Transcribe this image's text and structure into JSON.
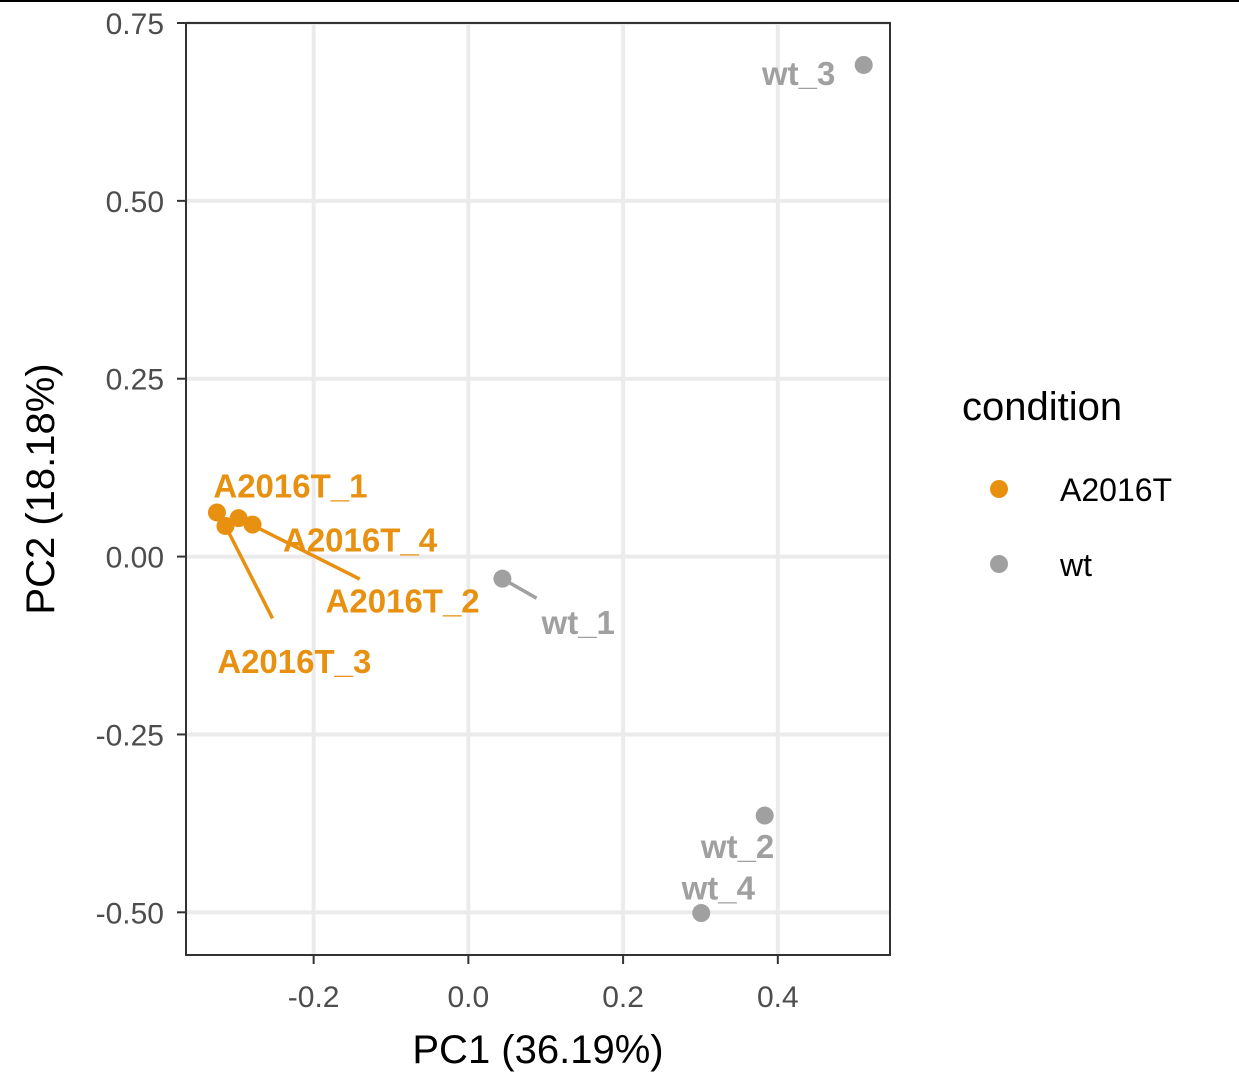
{
  "chart_data": {
    "type": "scatter",
    "title": "",
    "xlabel": "PC1 (36.19%)",
    "ylabel": "PC2 (18.18%)",
    "xlim": [
      -0.365,
      0.545
    ],
    "ylim": [
      -0.56,
      0.75
    ],
    "x_ticks": [
      -0.2,
      0.0,
      0.2,
      0.4
    ],
    "x_tick_labels": [
      "-0.2",
      "0.0",
      "0.2",
      "0.4"
    ],
    "y_ticks": [
      -0.5,
      -0.25,
      0.0,
      0.25,
      0.5,
      0.75
    ],
    "y_tick_labels": [
      "-0.50",
      "-0.25",
      "0.00",
      "0.25",
      "0.50",
      "0.75"
    ],
    "grid": true,
    "legend": {
      "title": "condition",
      "position": "right",
      "entries": [
        {
          "label": "A2016T",
          "color": "#E8900F"
        },
        {
          "label": "wt",
          "color": "#A0A0A0"
        }
      ]
    },
    "points": [
      {
        "label": "A2016T_1",
        "condition": "A2016T",
        "x": -0.325,
        "y": 0.062,
        "lx": -0.23,
        "ly": 0.1,
        "connector": false
      },
      {
        "label": "A2016T_2",
        "condition": "A2016T",
        "x": -0.297,
        "y": 0.054,
        "lx": -0.085,
        "ly": -0.062,
        "connector": true
      },
      {
        "label": "A2016T_3",
        "condition": "A2016T",
        "x": -0.314,
        "y": 0.043,
        "lx": -0.225,
        "ly": -0.147,
        "connector": true
      },
      {
        "label": "A2016T_4",
        "condition": "A2016T",
        "x": -0.279,
        "y": 0.045,
        "lx": -0.14,
        "ly": 0.024,
        "connector": false
      },
      {
        "label": "wt_1",
        "condition": "wt",
        "x": 0.044,
        "y": -0.031,
        "lx": 0.142,
        "ly": -0.092,
        "connector": true
      },
      {
        "label": "wt_2",
        "condition": "wt",
        "x": 0.383,
        "y": -0.364,
        "lx": 0.348,
        "ly": -0.407,
        "connector": false
      },
      {
        "label": "wt_3",
        "condition": "wt",
        "x": 0.511,
        "y": 0.691,
        "lx": 0.427,
        "ly": 0.68,
        "connector": false
      },
      {
        "label": "wt_4",
        "condition": "wt",
        "x": 0.301,
        "y": -0.501,
        "lx": 0.323,
        "ly": -0.465,
        "connector": false
      }
    ]
  }
}
